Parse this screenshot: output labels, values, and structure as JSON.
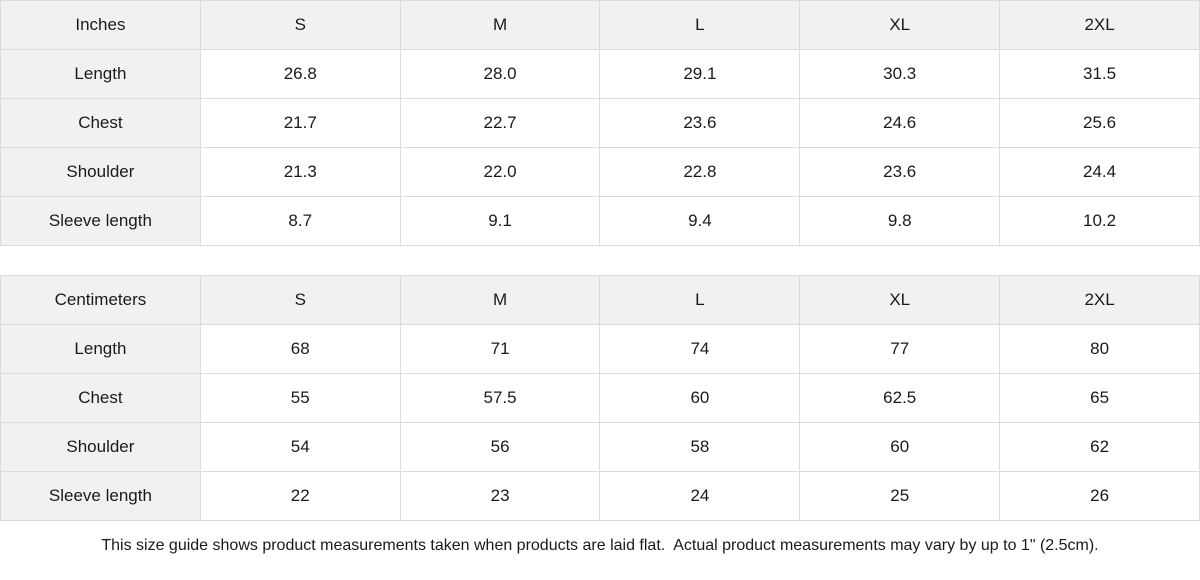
{
  "colors": {
    "header_bg": "#f1f1f1",
    "border": "#dcdcdc",
    "text": "#1a1a1a",
    "page_bg": "#ffffff"
  },
  "tables": [
    {
      "id": "inches",
      "unit_label": "Inches",
      "size_headers": [
        "S",
        "M",
        "L",
        "XL",
        "2XL"
      ],
      "rows": [
        {
          "label": "Length",
          "values": [
            "26.8",
            "28.0",
            "29.1",
            "30.3",
            "31.5"
          ]
        },
        {
          "label": "Chest",
          "values": [
            "21.7",
            "22.7",
            "23.6",
            "24.6",
            "25.6"
          ]
        },
        {
          "label": "Shoulder",
          "values": [
            "21.3",
            "22.0",
            "22.8",
            "23.6",
            "24.4"
          ]
        },
        {
          "label": "Sleeve length",
          "values": [
            "8.7",
            "9.1",
            "9.4",
            "9.8",
            "10.2"
          ]
        }
      ]
    },
    {
      "id": "centimeters",
      "unit_label": "Centimeters",
      "size_headers": [
        "S",
        "M",
        "L",
        "XL",
        "2XL"
      ],
      "rows": [
        {
          "label": "Length",
          "values": [
            "68",
            "71",
            "74",
            "77",
            "80"
          ]
        },
        {
          "label": "Chest",
          "values": [
            "55",
            "57.5",
            "60",
            "62.5",
            "65"
          ]
        },
        {
          "label": "Shoulder",
          "values": [
            "54",
            "56",
            "58",
            "60",
            "62"
          ]
        },
        {
          "label": "Sleeve length",
          "values": [
            "22",
            "23",
            "24",
            "25",
            "26"
          ]
        }
      ]
    }
  ],
  "footer": {
    "note": "This size guide shows product measurements taken when products are laid flat.  Actual product measurements may vary by up to 1\" (2.5cm)."
  }
}
